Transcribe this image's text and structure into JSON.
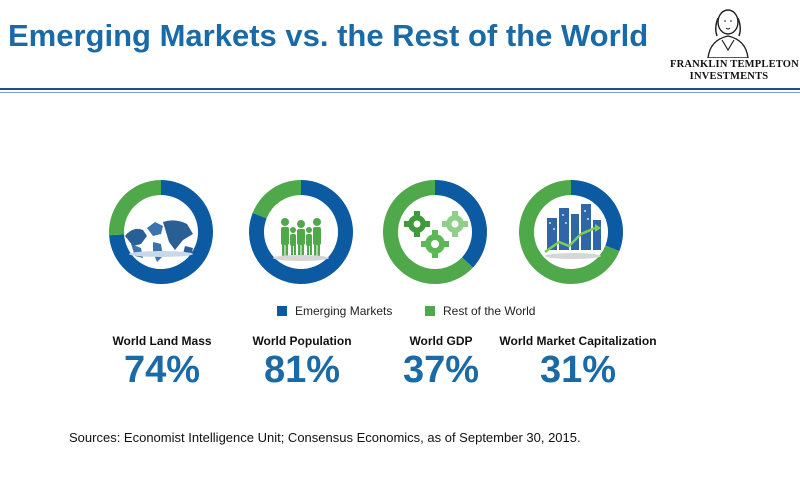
{
  "header": {
    "title": "Emerging Markets vs. the Rest of the World",
    "logo_line1": "FRANKLIN TEMPLETON",
    "logo_line2": "INVESTMENTS"
  },
  "chart_data": {
    "type": "pie",
    "charts": [
      {
        "label": "World Land Mass",
        "value_text": "74%",
        "emerging": 74,
        "rest": 26,
        "icon": "world-map-icon"
      },
      {
        "label": "World Population",
        "value_text": "81%",
        "emerging": 81,
        "rest": 19,
        "icon": "people-icon"
      },
      {
        "label": "World GDP",
        "value_text": "37%",
        "emerging": 37,
        "rest": 63,
        "icon": "gears-icon"
      },
      {
        "label": "World Market Capitalization",
        "value_text": "31%",
        "emerging": 31,
        "rest": 69,
        "icon": "city-growth-icon"
      }
    ],
    "legend": [
      {
        "name": "Emerging Markets",
        "color": "#0b5aa2"
      },
      {
        "name": "Rest of the World",
        "color": "#4fa84a"
      }
    ],
    "legend_position": "bottom"
  },
  "footer": {
    "sources": "Sources: Economist Intelligence  Unit;  Consensus Economics, as of September 30, 2015."
  }
}
